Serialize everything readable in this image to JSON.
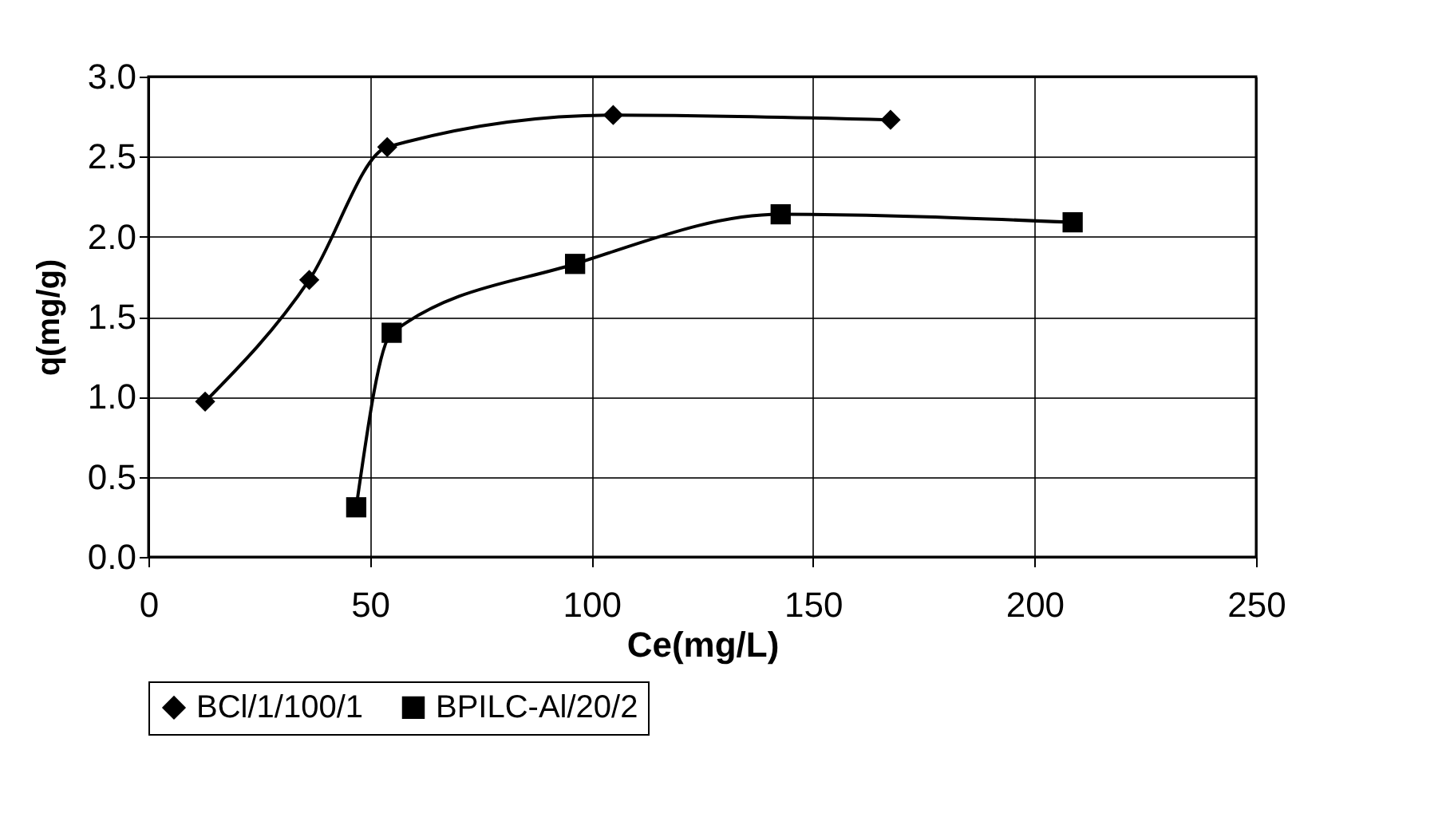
{
  "chart_data": {
    "type": "line",
    "xlabel": "Ce(mg/L)",
    "ylabel": "q(mg/g)",
    "xlim": [
      0,
      250
    ],
    "xticks": [
      0,
      50,
      100,
      150,
      200,
      250
    ],
    "ylim": [
      0,
      3
    ],
    "yticks": [
      {
        "value": 0,
        "label": "0.0"
      },
      {
        "value": 0.5,
        "label": "0.5"
      },
      {
        "value": 1,
        "label": "1.0"
      },
      {
        "value": 1.5,
        "label": "1.5"
      },
      {
        "value": 2,
        "label": "2.0"
      },
      {
        "value": 2.5,
        "label": "2.5"
      },
      {
        "value": 3,
        "label": "3.0"
      }
    ],
    "grid": true,
    "legend": "bottom",
    "line_style": "solid",
    "series": [
      {
        "name": "BCl/1/100/1",
        "color": "#000000",
        "marker": "diamond",
        "x": [
          12.8,
          36.3,
          53.9,
          104.9,
          167.5
        ],
        "values": [
          0.97,
          1.73,
          2.56,
          2.76,
          2.73
        ]
      },
      {
        "name": "BPILC-Al/20/2",
        "color": "#000000",
        "marker": "square",
        "x": [
          46.9,
          54.9,
          96.3,
          142.7,
          208.6
        ],
        "values": [
          0.31,
          1.4,
          1.83,
          2.14,
          2.09
        ]
      }
    ]
  }
}
